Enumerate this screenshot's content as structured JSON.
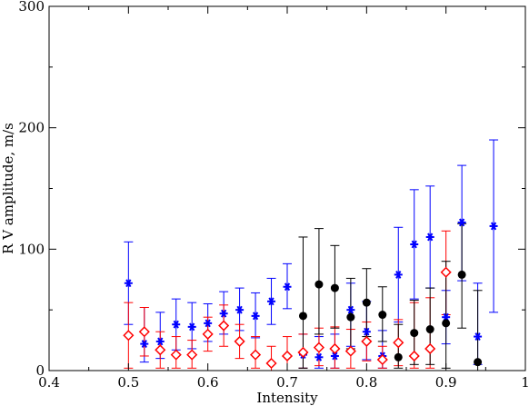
{
  "chart_data": {
    "type": "scatter",
    "title": "",
    "xlabel": "Intensity",
    "ylabel": "R V amplitude, m/s",
    "xlim": [
      0.4,
      1.0
    ],
    "ylim": [
      0,
      300
    ],
    "x_ticks": [
      "0.4",
      "0.5",
      "0.6",
      "0.7",
      "0.8",
      "0.9",
      "1"
    ],
    "y_ticks": [
      "0",
      "100",
      "200",
      "300"
    ],
    "x_tick_values": [
      0.4,
      0.5,
      0.6,
      0.7,
      0.8,
      0.9,
      1.0
    ],
    "y_tick_values": [
      0,
      100,
      200,
      300
    ],
    "grid": false,
    "legend": "none",
    "series": [
      {
        "marker": "asterisk",
        "color": "#0000ff",
        "points": [
          {
            "x": 0.5,
            "y": 72,
            "ylow": 38,
            "yhigh": 106
          },
          {
            "x": 0.52,
            "y": 22,
            "ylow": 7,
            "yhigh": 52
          },
          {
            "x": 0.54,
            "y": 24,
            "ylow": 10,
            "yhigh": 48
          },
          {
            "x": 0.56,
            "y": 38,
            "ylow": 17,
            "yhigh": 59
          },
          {
            "x": 0.58,
            "y": 36,
            "ylow": 18,
            "yhigh": 56
          },
          {
            "x": 0.6,
            "y": 39,
            "ylow": 24,
            "yhigh": 55
          },
          {
            "x": 0.62,
            "y": 47,
            "ylow": 30,
            "yhigh": 65
          },
          {
            "x": 0.64,
            "y": 50,
            "ylow": 33,
            "yhigh": 68
          },
          {
            "x": 0.66,
            "y": 45,
            "ylow": 27,
            "yhigh": 64
          },
          {
            "x": 0.68,
            "y": 57,
            "ylow": 38,
            "yhigh": 76
          },
          {
            "x": 0.7,
            "y": 69,
            "ylow": 51,
            "yhigh": 88
          },
          {
            "x": 0.72,
            "y": 13,
            "ylow": 2,
            "yhigh": 30
          },
          {
            "x": 0.74,
            "y": 11,
            "ylow": 2,
            "yhigh": 28
          },
          {
            "x": 0.76,
            "y": 12,
            "ylow": 2,
            "yhigh": 30
          },
          {
            "x": 0.78,
            "y": 50,
            "ylow": 20,
            "yhigh": 72
          },
          {
            "x": 0.8,
            "y": 32,
            "ylow": 9,
            "yhigh": 57
          },
          {
            "x": 0.82,
            "y": 12,
            "ylow": 2,
            "yhigh": 33
          },
          {
            "x": 0.84,
            "y": 79,
            "ylow": 40,
            "yhigh": 118
          },
          {
            "x": 0.86,
            "y": 104,
            "ylow": 59,
            "yhigh": 149
          },
          {
            "x": 0.88,
            "y": 110,
            "ylow": 68,
            "yhigh": 152
          },
          {
            "x": 0.9,
            "y": 44,
            "ylow": 22,
            "yhigh": 66
          },
          {
            "x": 0.92,
            "y": 122,
            "ylow": 74,
            "yhigh": 169
          },
          {
            "x": 0.94,
            "y": 28,
            "ylow": 5,
            "yhigh": 72
          },
          {
            "x": 0.96,
            "y": 119,
            "ylow": 48,
            "yhigh": 190
          }
        ]
      },
      {
        "marker": "diamond",
        "color": "#ff0000",
        "points": [
          {
            "x": 0.5,
            "y": 29,
            "ylow": 2,
            "yhigh": 56
          },
          {
            "x": 0.52,
            "y": 32,
            "ylow": 12,
            "yhigh": 52
          },
          {
            "x": 0.54,
            "y": 17,
            "ylow": 2,
            "yhigh": 32
          },
          {
            "x": 0.56,
            "y": 13,
            "ylow": 2,
            "yhigh": 28
          },
          {
            "x": 0.58,
            "y": 13,
            "ylow": 2,
            "yhigh": 25
          },
          {
            "x": 0.6,
            "y": 30,
            "ylow": 16,
            "yhigh": 44
          },
          {
            "x": 0.62,
            "y": 37,
            "ylow": 20,
            "yhigh": 54
          },
          {
            "x": 0.64,
            "y": 24,
            "ylow": 10,
            "yhigh": 38
          },
          {
            "x": 0.66,
            "y": 13,
            "ylow": 2,
            "yhigh": 28
          },
          {
            "x": 0.68,
            "y": 6,
            "ylow": 0,
            "yhigh": 20
          },
          {
            "x": 0.7,
            "y": 12,
            "ylow": 0,
            "yhigh": 28
          },
          {
            "x": 0.72,
            "y": 15,
            "ylow": 2,
            "yhigh": 30
          },
          {
            "x": 0.74,
            "y": 19,
            "ylow": 4,
            "yhigh": 35
          },
          {
            "x": 0.76,
            "y": 18,
            "ylow": 2,
            "yhigh": 36
          },
          {
            "x": 0.78,
            "y": 16,
            "ylow": 2,
            "yhigh": 34
          },
          {
            "x": 0.8,
            "y": 24,
            "ylow": 8,
            "yhigh": 40
          },
          {
            "x": 0.82,
            "y": 9,
            "ylow": 2,
            "yhigh": 20
          },
          {
            "x": 0.84,
            "y": 23,
            "ylow": 4,
            "yhigh": 42
          },
          {
            "x": 0.86,
            "y": 12,
            "ylow": 2,
            "yhigh": 56
          },
          {
            "x": 0.88,
            "y": 18,
            "ylow": 2,
            "yhigh": 60
          },
          {
            "x": 0.9,
            "y": 81,
            "ylow": 46,
            "yhigh": 115
          }
        ]
      },
      {
        "marker": "circle",
        "color": "#000000",
        "points": [
          {
            "x": 0.72,
            "y": 45,
            "ylow": 2,
            "yhigh": 110
          },
          {
            "x": 0.74,
            "y": 71,
            "ylow": 30,
            "yhigh": 117
          },
          {
            "x": 0.76,
            "y": 68,
            "ylow": 35,
            "yhigh": 103
          },
          {
            "x": 0.78,
            "y": 44,
            "ylow": 18,
            "yhigh": 76
          },
          {
            "x": 0.8,
            "y": 56,
            "ylow": 28,
            "yhigh": 84
          },
          {
            "x": 0.82,
            "y": 46,
            "ylow": 24,
            "yhigh": 69
          },
          {
            "x": 0.84,
            "y": 11,
            "ylow": 2,
            "yhigh": 38
          },
          {
            "x": 0.86,
            "y": 31,
            "ylow": 5,
            "yhigh": 58
          },
          {
            "x": 0.88,
            "y": 34,
            "ylow": 5,
            "yhigh": 68
          },
          {
            "x": 0.9,
            "y": 39,
            "ylow": 2,
            "yhigh": 90
          },
          {
            "x": 0.92,
            "y": 79,
            "ylow": 35,
            "yhigh": 121
          },
          {
            "x": 0.94,
            "y": 7,
            "ylow": 0,
            "yhigh": 66
          }
        ]
      }
    ]
  }
}
